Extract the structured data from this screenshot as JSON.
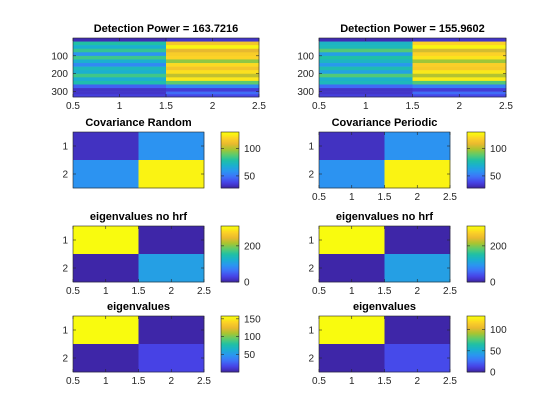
{
  "figure": {
    "colors": {
      "parula": [
        "#3e26a8",
        "#4744e8",
        "#3e72f8",
        "#2b95f1",
        "#1bafd0",
        "#20c0a5",
        "#5ccb6e",
        "#a8c531",
        "#e9b92f",
        "#fcd227",
        "#f9fb0e"
      ]
    }
  },
  "chart_data": [
    {
      "id": "p1",
      "type": "heatmap",
      "title": "Detection Power = 163.7216",
      "x_ticks": [
        "0.5",
        "1",
        "1.5",
        "2",
        "2.5"
      ],
      "y_ticks": [
        "100",
        "200",
        "300"
      ],
      "x_range": [
        0.5,
        2.5
      ],
      "y_range": [
        0.5,
        330.5
      ],
      "rows": 330,
      "cols": 2,
      "row_bands": [
        {
          "from": 1,
          "to": 20,
          "values": [
            0.05,
            0.1
          ]
        },
        {
          "from": 21,
          "to": 40,
          "values": [
            0.55,
            0.8
          ]
        },
        {
          "from": 41,
          "to": 60,
          "values": [
            0.35,
            0.95
          ]
        },
        {
          "from": 61,
          "to": 80,
          "values": [
            0.5,
            0.78
          ]
        },
        {
          "from": 81,
          "to": 100,
          "values": [
            0.28,
            0.88
          ]
        },
        {
          "from": 101,
          "to": 120,
          "values": [
            0.55,
            0.92
          ]
        },
        {
          "from": 121,
          "to": 140,
          "values": [
            0.42,
            0.7
          ]
        },
        {
          "from": 141,
          "to": 160,
          "values": [
            0.3,
            0.97
          ]
        },
        {
          "from": 161,
          "to": 180,
          "values": [
            0.5,
            0.8
          ]
        },
        {
          "from": 181,
          "to": 200,
          "values": [
            0.35,
            0.9
          ]
        },
        {
          "from": 201,
          "to": 220,
          "values": [
            0.52,
            0.72
          ]
        },
        {
          "from": 221,
          "to": 240,
          "values": [
            0.38,
            0.95
          ]
        },
        {
          "from": 241,
          "to": 260,
          "values": [
            0.48,
            0.62
          ]
        },
        {
          "from": 261,
          "to": 280,
          "values": [
            0.18,
            0.3
          ]
        },
        {
          "from": 281,
          "to": 300,
          "values": [
            0.08,
            0.12
          ]
        },
        {
          "from": 301,
          "to": 330,
          "values": [
            0.1,
            0.14
          ]
        }
      ]
    },
    {
      "id": "p2",
      "type": "heatmap",
      "title": "Detection Power = 155.9602",
      "x_ticks": [
        "0.5",
        "1",
        "1.5",
        "2",
        "2.5"
      ],
      "y_ticks": [
        "100",
        "200",
        "300"
      ],
      "x_range": [
        0.5,
        2.5
      ],
      "y_range": [
        0.5,
        330.5
      ],
      "rows": 330,
      "cols": 2,
      "row_bands": [
        {
          "from": 1,
          "to": 20,
          "values": [
            0.05,
            0.1
          ]
        },
        {
          "from": 21,
          "to": 40,
          "values": [
            0.48,
            0.85
          ]
        },
        {
          "from": 41,
          "to": 60,
          "values": [
            0.4,
            0.95
          ]
        },
        {
          "from": 61,
          "to": 80,
          "values": [
            0.55,
            0.75
          ]
        },
        {
          "from": 81,
          "to": 100,
          "values": [
            0.32,
            0.9
          ]
        },
        {
          "from": 101,
          "to": 120,
          "values": [
            0.5,
            0.96
          ]
        },
        {
          "from": 121,
          "to": 140,
          "values": [
            0.45,
            0.72
          ]
        },
        {
          "from": 141,
          "to": 160,
          "values": [
            0.35,
            0.94
          ]
        },
        {
          "from": 161,
          "to": 180,
          "values": [
            0.52,
            0.82
          ]
        },
        {
          "from": 181,
          "to": 200,
          "values": [
            0.3,
            0.92
          ]
        },
        {
          "from": 201,
          "to": 220,
          "values": [
            0.55,
            0.7
          ]
        },
        {
          "from": 221,
          "to": 240,
          "values": [
            0.4,
            0.96
          ]
        },
        {
          "from": 241,
          "to": 260,
          "values": [
            0.45,
            0.6
          ]
        },
        {
          "from": 261,
          "to": 280,
          "values": [
            0.2,
            0.28
          ]
        },
        {
          "from": 281,
          "to": 300,
          "values": [
            0.08,
            0.12
          ]
        },
        {
          "from": 301,
          "to": 330,
          "values": [
            0.1,
            0.14
          ]
        }
      ]
    },
    {
      "id": "p3",
      "type": "heatmap",
      "title": "Covariance Random",
      "x_ticks": [],
      "y_ticks": [
        "1",
        "2"
      ],
      "x_range": [
        0.5,
        2.5
      ],
      "y_range": [
        0.5,
        2.5
      ],
      "matrix": [
        [
          32,
          58
        ],
        [
          58,
          128
        ]
      ],
      "clim": [
        28,
        130
      ],
      "colorbar_ticks": [
        {
          "label": "50",
          "value": 50
        },
        {
          "label": "100",
          "value": 100
        }
      ]
    },
    {
      "id": "p4",
      "type": "heatmap",
      "title": "Covariance Periodic",
      "x_ticks": [
        "0.5",
        "1",
        "1.5",
        "2",
        "2.5"
      ],
      "y_ticks": [
        "1",
        "2"
      ],
      "x_range": [
        0.5,
        2.5
      ],
      "y_range": [
        0.5,
        2.5
      ],
      "matrix": [
        [
          32,
          58
        ],
        [
          58,
          128
        ]
      ],
      "clim": [
        28,
        130
      ],
      "colorbar_ticks": [
        {
          "label": "50",
          "value": 50
        },
        {
          "label": "100",
          "value": 100
        }
      ]
    },
    {
      "id": "p5",
      "type": "heatmap",
      "title": "eigenvalues no hrf",
      "x_ticks": [
        "0.5",
        "1",
        "1.5",
        "2",
        "2.5"
      ],
      "y_ticks": [
        "1",
        "2"
      ],
      "x_range": [
        0.5,
        2.5
      ],
      "y_range": [
        0.5,
        2.5
      ],
      "matrix": [
        [
          310,
          0
        ],
        [
          0,
          105
        ]
      ],
      "clim": [
        0,
        310
      ],
      "colorbar_ticks": [
        {
          "label": "0",
          "value": 0
        },
        {
          "label": "200",
          "value": 200
        }
      ]
    },
    {
      "id": "p6",
      "type": "heatmap",
      "title": "eigenvalues no hrf",
      "x_ticks": [
        "0.5",
        "1",
        "1.5",
        "2",
        "2.5"
      ],
      "y_ticks": [
        "1",
        "2"
      ],
      "x_range": [
        0.5,
        2.5
      ],
      "y_range": [
        0.5,
        2.5
      ],
      "matrix": [
        [
          310,
          0
        ],
        [
          0,
          105
        ]
      ],
      "clim": [
        0,
        310
      ],
      "colorbar_ticks": [
        {
          "label": "0",
          "value": 0
        },
        {
          "label": "200",
          "value": 200
        }
      ]
    },
    {
      "id": "p7",
      "type": "heatmap",
      "title": "eigenvalues",
      "x_ticks": [
        "0.5",
        "1",
        "1.5",
        "2",
        "2.5"
      ],
      "y_ticks": [
        "1",
        "2"
      ],
      "x_range": [
        0.5,
        2.5
      ],
      "y_range": [
        0.5,
        2.5
      ],
      "matrix": [
        [
          158,
          0
        ],
        [
          0,
          15
        ]
      ],
      "clim": [
        0,
        158
      ],
      "colorbar_ticks": [
        {
          "label": "50",
          "value": 50
        },
        {
          "label": "100",
          "value": 100
        },
        {
          "label": "150",
          "value": 150
        }
      ]
    },
    {
      "id": "p8",
      "type": "heatmap",
      "title": "eigenvalues",
      "x_ticks": [
        "0.5",
        "1",
        "1.5",
        "2",
        "2.5"
      ],
      "y_ticks": [
        "1",
        "2"
      ],
      "x_range": [
        0.5,
        2.5
      ],
      "y_range": [
        0.5,
        2.5
      ],
      "matrix": [
        [
          132,
          0
        ],
        [
          0,
          15
        ]
      ],
      "clim": [
        0,
        132
      ],
      "colorbar_ticks": [
        {
          "label": "0",
          "value": 0
        },
        {
          "label": "50",
          "value": 50
        },
        {
          "label": "100",
          "value": 100
        }
      ]
    }
  ]
}
